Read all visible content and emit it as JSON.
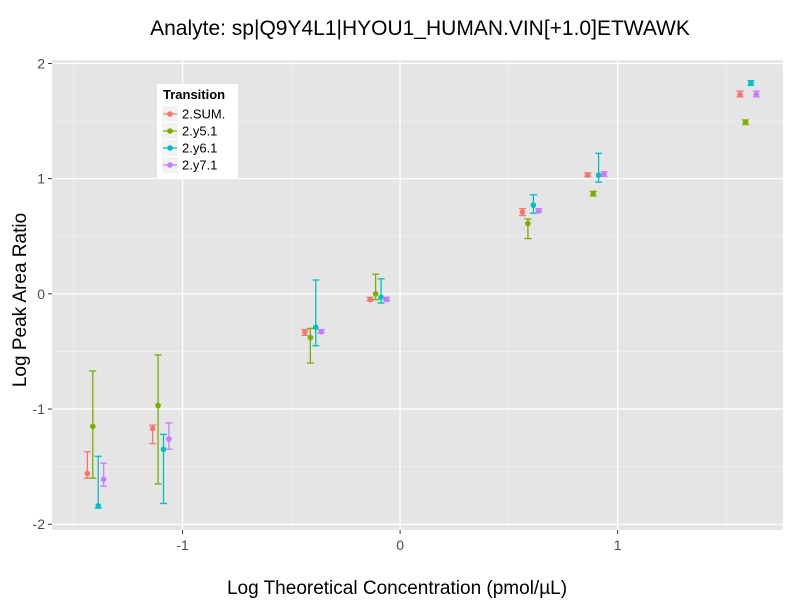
{
  "chart_data": {
    "type": "scatter",
    "title": "Analyte: sp|Q9Y4L1|HYOU1_HUMAN.VIN[+1.0]ETWAWK",
    "xlabel": "Log Theoretical Concentration (pmol/µL)",
    "ylabel": "Log Peak Area Ratio",
    "xlim": [
      -1.6,
      1.76
    ],
    "ylim": [
      -2.05,
      2.03
    ],
    "xticks": [
      -1,
      0,
      1
    ],
    "xtick_labels": [
      "-1",
      "0",
      "1"
    ],
    "yticks": [
      -2,
      -1,
      0,
      1,
      2
    ],
    "ytick_labels": [
      "-2",
      "-1",
      "0",
      "1",
      "2"
    ],
    "legend_title": "Transition",
    "legend_position": "top-left",
    "series": [
      {
        "name": "2.SUM.",
        "color": "#F8766D",
        "x": [
          -1.4,
          -1.1,
          -0.4,
          -0.1,
          0.6,
          0.9,
          1.6
        ],
        "y": [
          -1.56,
          -1.17,
          -0.33,
          -0.05,
          0.71,
          1.03,
          1.73
        ],
        "err_low": [
          -1.6,
          -1.3,
          -0.36,
          -0.06,
          0.68,
          1.02,
          1.71
        ],
        "err_high": [
          -1.37,
          -1.14,
          -0.31,
          -0.03,
          0.74,
          1.05,
          1.76
        ]
      },
      {
        "name": "2.y5.1",
        "color": "#7CAE00",
        "x": [
          -1.4,
          -1.1,
          -0.4,
          -0.1,
          0.6,
          0.9,
          1.6
        ],
        "y": [
          -1.15,
          -0.97,
          -0.38,
          0.0,
          0.61,
          0.87,
          1.49
        ],
        "err_low": [
          -1.6,
          -1.65,
          -0.6,
          -0.05,
          0.48,
          0.85,
          1.47
        ],
        "err_high": [
          -0.67,
          -0.53,
          -0.3,
          0.17,
          0.65,
          0.89,
          1.51
        ]
      },
      {
        "name": "2.y6.1",
        "color": "#00BFC4",
        "x": [
          -1.4,
          -1.1,
          -0.4,
          -0.1,
          0.6,
          0.9,
          1.6
        ],
        "y": [
          -1.84,
          -1.35,
          -0.29,
          -0.03,
          0.77,
          1.03,
          1.83
        ],
        "err_low": [
          -1.86,
          -1.82,
          -0.45,
          -0.08,
          0.7,
          0.97,
          1.81
        ],
        "err_high": [
          -1.41,
          -1.22,
          0.12,
          0.13,
          0.86,
          1.22,
          1.85
        ]
      },
      {
        "name": "2.y7.1",
        "color": "#C77CFF",
        "x": [
          -1.4,
          -1.1,
          -0.4,
          -0.1,
          0.6,
          0.9,
          1.6
        ],
        "y": [
          -1.61,
          -1.26,
          -0.33,
          -0.05,
          0.72,
          1.04,
          1.73
        ],
        "err_low": [
          -1.67,
          -1.35,
          -0.34,
          -0.06,
          0.71,
          1.02,
          1.71
        ],
        "err_high": [
          -1.47,
          -1.12,
          -0.31,
          -0.03,
          0.74,
          1.06,
          1.76
        ]
      }
    ]
  }
}
